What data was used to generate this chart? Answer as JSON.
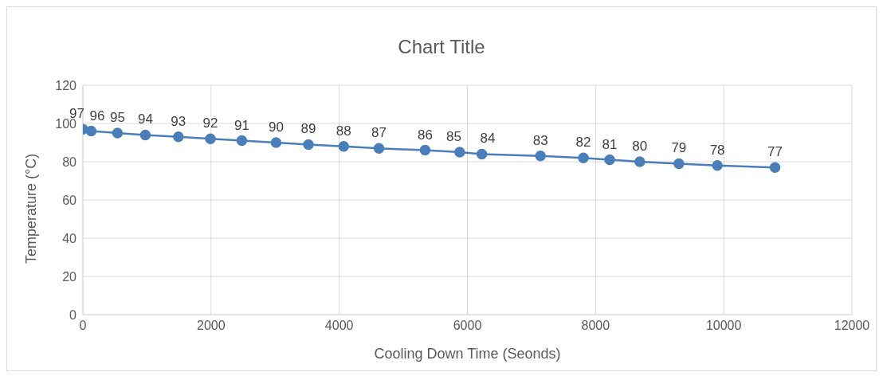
{
  "chart_data": {
    "type": "line",
    "title": "Chart Title",
    "xlabel": "Cooling Down Time (Seonds)",
    "ylabel": "Temperature (°C)",
    "x": [
      0,
      130,
      540,
      975,
      1490,
      1990,
      2480,
      3015,
      3520,
      4070,
      4620,
      5340,
      5880,
      6225,
      7140,
      7810,
      8220,
      8690,
      9300,
      9900,
      10800
    ],
    "series": [
      {
        "color": "#4a7ebb",
        "values": [
          97,
          96,
          95,
          94,
          93,
          92,
          91,
          90,
          89,
          88,
          87,
          86,
          85,
          84,
          83,
          82,
          81,
          80,
          79,
          78,
          77
        ]
      }
    ],
    "xlim": [
      0,
      12000
    ],
    "xticks": [
      0,
      2000,
      4000,
      6000,
      8000,
      10000,
      12000
    ],
    "ylim": [
      0,
      120
    ],
    "yticks": [
      0,
      20,
      40,
      60,
      80,
      100,
      120
    ],
    "grid": true,
    "legend": false,
    "marker": "circle",
    "line_style": "solid",
    "data_labels": true
  }
}
